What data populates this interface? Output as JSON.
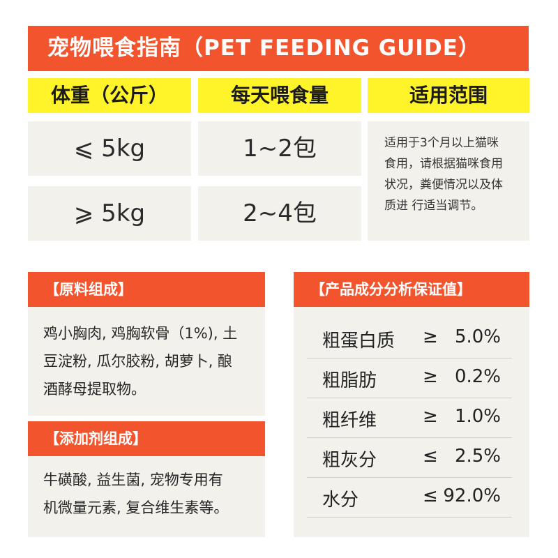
{
  "title": "宠物喂食指南（PET FEEDING GUIDE）",
  "headers": {
    "weight": "体重（公斤）",
    "daily": "每天喂食量",
    "scope": "适用范围"
  },
  "rows": [
    {
      "weight": "⩽ 5kg",
      "amount": "1~2包"
    },
    {
      "weight": "⩾ 5kg",
      "amount": "2~4包"
    }
  ],
  "scope_lines": [
    "适用于3个月以上猫咪",
    "食用，请根据猫咪食用",
    "状况，粪便情况以及体",
    "质进 行适当调节。"
  ],
  "ingredients": {
    "header": "【原料组成】",
    "lines": [
      "鸡小胸肉, 鸡胸软骨（1%), 土",
      "豆淀粉, 瓜尔胶粉, 胡萝卜, 酿",
      "酒酵母提取物。"
    ]
  },
  "additives": {
    "header": "【添加剂组成】",
    "lines": [
      "牛磺酸, 益生菌, 宠物专用有",
      "机微量元素, 复合维生素等。"
    ]
  },
  "analysis": {
    "header": "【产品成分分析保证值】",
    "items": [
      {
        "name": "粗蛋白质",
        "op": "≥",
        "value": "5.0%"
      },
      {
        "name": "粗脂肪",
        "op": "≥",
        "value": "0.2%"
      },
      {
        "name": "粗纤维",
        "op": "≥",
        "value": "1.0%"
      },
      {
        "name": "粗灰分",
        "op": "≤",
        "value": "2.5%"
      },
      {
        "name": "水分",
        "op": "≤",
        "value": "92.0%"
      }
    ]
  },
  "colors": {
    "orange": "#f2542d",
    "yellow": "#fff42a",
    "panel": "#f3f1ec"
  }
}
